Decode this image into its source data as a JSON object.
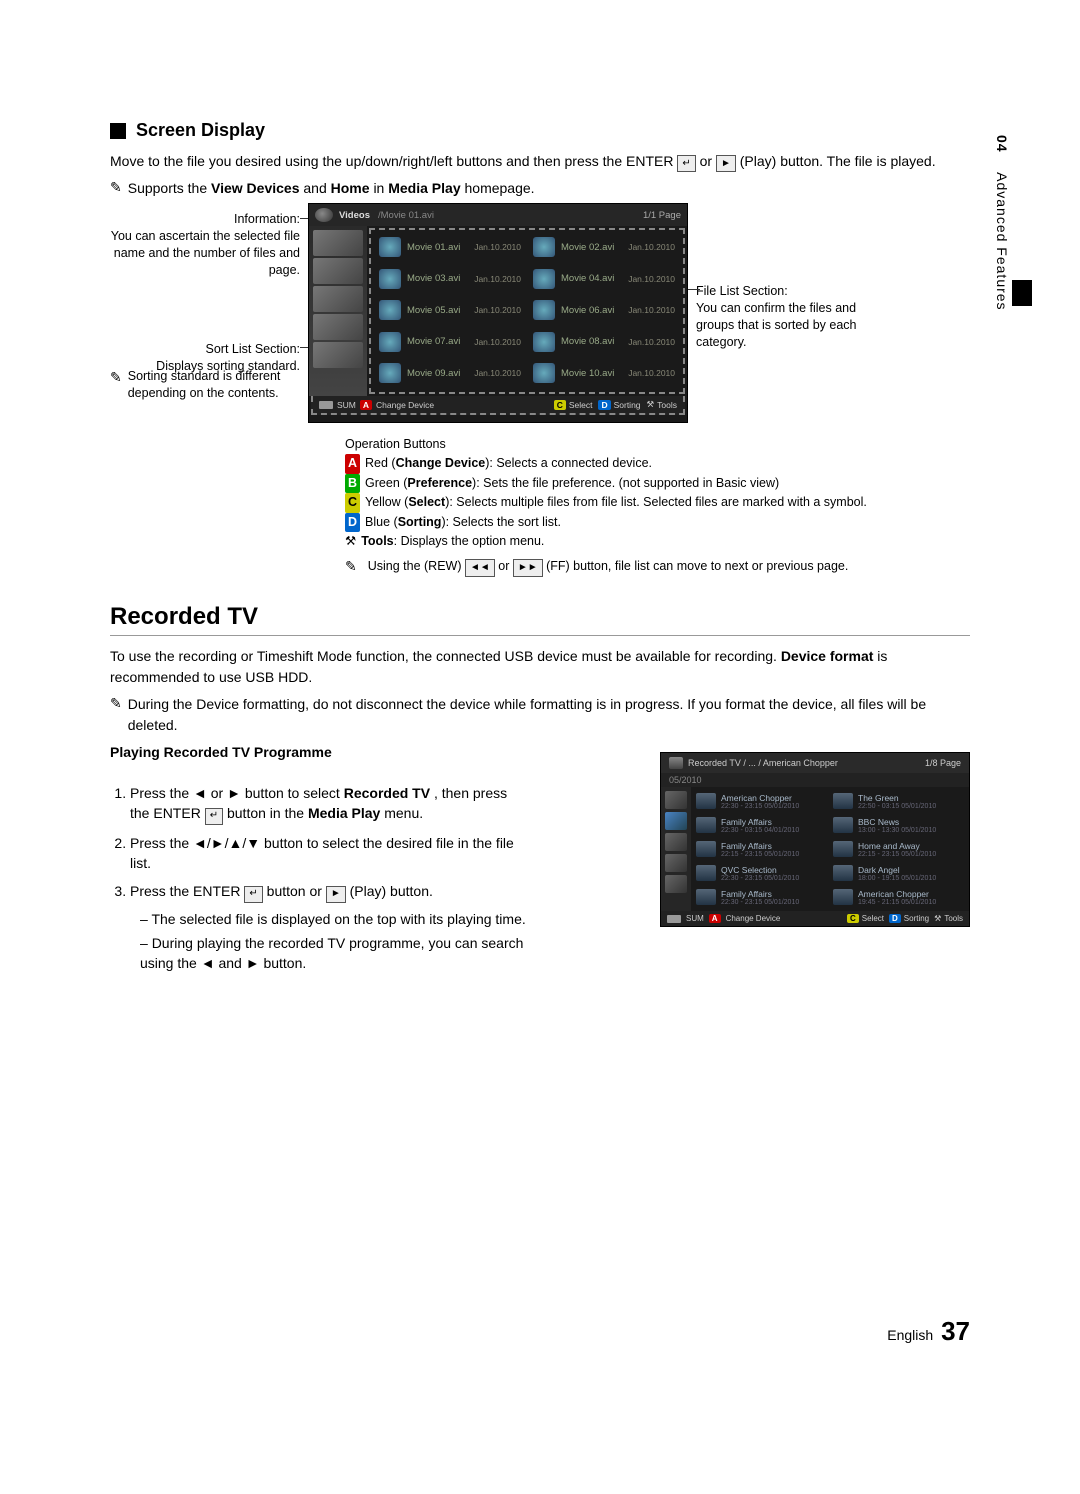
{
  "sideTab": {
    "chapter": "04",
    "title": "Advanced Features"
  },
  "section1": {
    "title": "Screen Display",
    "intro_a": "Move to the file you desired using the up/down/right/left buttons and then press the ENTER",
    "intro_b": " or ",
    "intro_c": " (Play) button. The file is played.",
    "note1_a": "Supports the ",
    "note1_b": "View Devices",
    "note1_c": " and ",
    "note1_d": "Home",
    "note1_e": " in ",
    "note1_f": "Media Play",
    "note1_g": " homepage."
  },
  "callouts": {
    "info_label": "Information:",
    "info_desc": "You can ascertain the selected file name and the number of files and page.",
    "sort_label": "Sort List Section:",
    "sort_desc": "Displays sorting standard.",
    "sortnote": "Sorting standard is different depending on the contents.",
    "filelist_label": "File List Section:",
    "filelist_desc": "You can confirm the files and groups that is sorted by each category."
  },
  "tv": {
    "title": "Videos",
    "path": "/Movie 01.avi",
    "page": "1/1 Page",
    "items": [
      {
        "name": "Movie 01.avi",
        "date": "Jan.10.2010"
      },
      {
        "name": "Movie 02.avi",
        "date": "Jan.10.2010"
      },
      {
        "name": "Movie 03.avi",
        "date": "Jan.10.2010"
      },
      {
        "name": "Movie 04.avi",
        "date": "Jan.10.2010"
      },
      {
        "name": "Movie 05.avi",
        "date": "Jan.10.2010"
      },
      {
        "name": "Movie 06.avi",
        "date": "Jan.10.2010"
      },
      {
        "name": "Movie 07.avi",
        "date": "Jan.10.2010"
      },
      {
        "name": "Movie 08.avi",
        "date": "Jan.10.2010"
      },
      {
        "name": "Movie 09.avi",
        "date": "Jan.10.2010"
      },
      {
        "name": "Movie 10.avi",
        "date": "Jan.10.2010"
      }
    ],
    "bottom_sum": "SUM",
    "bottom_change": "Change Device",
    "bottom_select": "Select",
    "bottom_sort": "Sorting",
    "bottom_tools": "Tools"
  },
  "ops": {
    "heading": "Operation Buttons",
    "red_a": " Red (",
    "red_b": "Change Device",
    "red_c": "): Selects a connected device.",
    "green_a": " Green (",
    "green_b": "Preference",
    "green_c": "): Sets the file preference. (not supported in Basic view)",
    "yellow_a": " Yellow (",
    "yellow_b": "Select",
    "yellow_c": "): Selects multiple files from file list. Selected files are marked with a symbol.",
    "blue_a": " Blue (",
    "blue_b": "Sorting",
    "blue_c": "): Selects the sort list.",
    "tools_a": " ",
    "tools_b": "Tools",
    "tools_c": ": Displays the option menu.",
    "ff_note": " Using the (REW)  or  (FF) button, file list can move to next or previous page."
  },
  "section2": {
    "title": "Recorded TV",
    "intro_a": "To use the recording or Timeshift Mode function, the connected USB device must be available for recording. ",
    "intro_b": "Device format",
    "intro_c": " is recommended to use USB HDD.",
    "note": "During the Device formatting, do not disconnect the device while formatting is in progress. If you format the device, all files will be deleted.",
    "play_heading": "Playing Recorded TV Programme",
    "step1_a": "Press the ◄ or ► button to select ",
    "step1_b": "Recorded TV",
    "step1_c": ", then press the ENTER",
    "step1_d": " button in the ",
    "step1_e": "Media Play",
    "step1_f": " menu.",
    "step2": "Press the ◄/►/▲/▼ button to select the desired file in the file list.",
    "step3_a": "Press the ENTER",
    "step3_b": " button or ",
    "step3_c": " (Play) button.",
    "sub1": "The selected file is displayed on the top with its playing time.",
    "sub2": "During playing the recorded TV programme, you can search using the ◄ and ► button."
  },
  "tv2": {
    "title": "Recorded TV / ... / American Chopper",
    "page": "1/8 Page",
    "date": "05/2010",
    "items": [
      {
        "name": "American Chopper",
        "sub": "22:30 - 23:15  05/01/2010"
      },
      {
        "name": "The Green",
        "sub": "22:50 - 03:15  05/01/2010"
      },
      {
        "name": "Family Affairs",
        "sub": "22:30 - 03:15  04/01/2010"
      },
      {
        "name": "BBC News",
        "sub": "13:00 - 13:30  05/01/2010"
      },
      {
        "name": "Family Affairs",
        "sub": "22:15 - 23:15  05/01/2010"
      },
      {
        "name": "Home and Away",
        "sub": "22:15 - 23:15  05/01/2010"
      },
      {
        "name": "QVC Selection",
        "sub": "22:30 - 23:15  05/01/2010"
      },
      {
        "name": "Dark Angel",
        "sub": "18:00 - 19:15  05/01/2010"
      },
      {
        "name": "Family Affairs",
        "sub": "22:30 - 23:15  05/01/2010"
      },
      {
        "name": "American Chopper",
        "sub": "19:45 - 21:15  05/01/2010"
      }
    ],
    "sum": "SUM",
    "change": "Change Device",
    "select": "Select",
    "sort": "Sorting",
    "tools": "Tools"
  },
  "footer": {
    "lang": "English",
    "page": "37"
  },
  "icons": {
    "note": "✎",
    "enter": "↵",
    "play": "►",
    "rew": "◄◄",
    "ff": "►►",
    "tools": "⚒",
    "A": "A",
    "B": "B",
    "C": "C",
    "D": "D"
  }
}
